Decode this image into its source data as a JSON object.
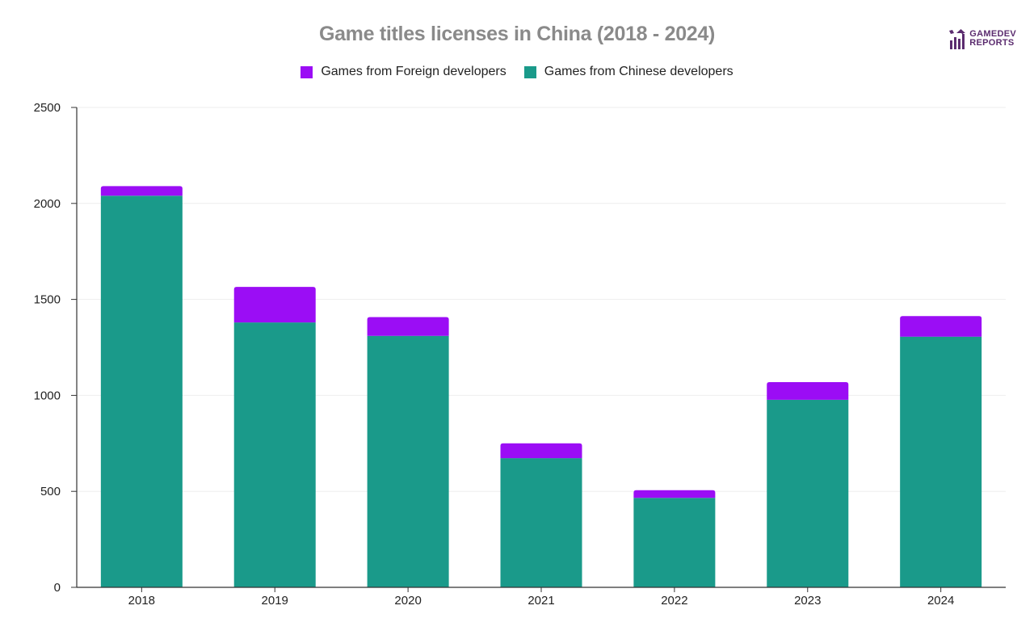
{
  "brand": {
    "logo_line1": "GAMEDEV",
    "logo_line2": "REPORTS",
    "logo_color": "#5b2c6f"
  },
  "chart_data": {
    "type": "bar",
    "stacked": true,
    "title": "Game titles licenses in China (2018 - 2024)",
    "xlabel": "",
    "ylabel": "",
    "categories": [
      "2018",
      "2019",
      "2020",
      "2021",
      "2022",
      "2023",
      "2024"
    ],
    "series": [
      {
        "name": "Games from Chinese developers",
        "color": "#1a9a8a",
        "values": [
          2040,
          1380,
          1310,
          673,
          466,
          977,
          1306
        ]
      },
      {
        "name": "Games from Foreign developers",
        "color": "#9b0df5",
        "values": [
          50,
          185,
          98,
          77,
          40,
          92,
          107
        ]
      }
    ],
    "legend_order": [
      "Games from Foreign developers",
      "Games from Chinese developers"
    ],
    "legend_position": "top-center",
    "ylim": [
      0,
      2500
    ],
    "yticks": [
      0,
      500,
      1000,
      1500,
      2000,
      2500
    ],
    "grid": true
  }
}
